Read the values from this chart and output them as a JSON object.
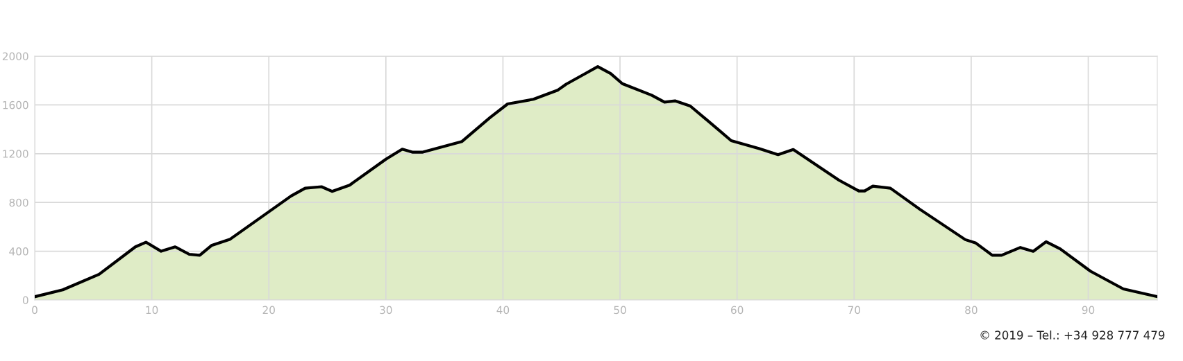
{
  "chart_data": {
    "type": "area",
    "x": [
      0,
      2.4,
      5.5,
      8.6,
      9.5,
      10.8,
      12.0,
      13.2,
      14.1,
      15.1,
      16.7,
      21.9,
      23.1,
      24.5,
      25.4,
      26.9,
      30.0,
      31.4,
      32.3,
      33.1,
      36.5,
      38.9,
      40.4,
      42.6,
      44.7,
      45.4,
      47.0,
      48.1,
      49.2,
      50.2,
      52.7,
      53.8,
      54.7,
      56.0,
      58.4,
      59.5,
      61.9,
      63.5,
      64.8,
      68.7,
      70.4,
      70.9,
      71.6,
      73.1,
      75.6,
      79.5,
      80.4,
      81.8,
      82.6,
      84.2,
      85.3,
      86.4,
      87.6,
      90.2,
      93.0,
      95.9
    ],
    "series": [
      {
        "color": "#dfecc6",
        "values": [
          27,
          84,
          211,
          436,
          474,
          400,
          436,
          375,
          367,
          447,
          499,
          853,
          917,
          929,
          891,
          942,
          1155,
          1237,
          1212,
          1212,
          1300,
          1496,
          1608,
          1646,
          1722,
          1770,
          1855,
          1914,
          1857,
          1774,
          1680,
          1623,
          1633,
          1591,
          1397,
          1307,
          1241,
          1192,
          1234,
          983,
          894,
          894,
          934,
          917,
          745,
          495,
          467,
          367,
          367,
          431,
          399,
          478,
          420,
          236,
          91,
          28
        ]
      }
    ],
    "xlim": [
      0,
      95.9
    ],
    "ylim": [
      0,
      2000
    ],
    "xticks": [
      0,
      10,
      20,
      30,
      40,
      50,
      60,
      70,
      80,
      90
    ],
    "yticks": [
      0,
      400,
      800,
      1200,
      1600,
      2000
    ],
    "grid": true,
    "annotations": [
      "© 2019 – Tel.: +34 928 777 479"
    ]
  }
}
